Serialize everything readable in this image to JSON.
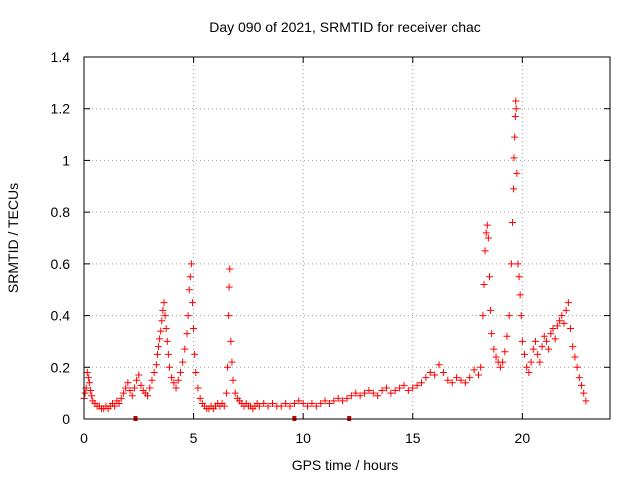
{
  "chart_data": {
    "type": "scatter",
    "title": "Day 090 of 2021, SRMTID for receiver chac",
    "xlabel": "GPS time / hours",
    "ylabel": "SRMTID / TECUs",
    "xlim": [
      0,
      24
    ],
    "ylim": [
      0,
      1.4
    ],
    "xticks": [
      0,
      5,
      10,
      15,
      20
    ],
    "yticks": [
      0,
      0.2,
      0.4,
      0.6,
      0.8,
      1.0,
      1.2,
      1.4
    ],
    "xtick_labels": [
      "0",
      "5",
      "10",
      "15",
      "20"
    ],
    "ytick_labels": [
      "0",
      "0.2",
      "0.4",
      "0.6",
      "0.8",
      "1",
      "1.2",
      "1.4"
    ],
    "grid": true,
    "marker": "+",
    "color": "#ff0000",
    "gap_markers_x": [
      2.35,
      9.6,
      12.1
    ],
    "series": [
      {
        "name": "SRMTID",
        "points": [
          [
            0.0,
            0.08
          ],
          [
            0.05,
            0.1
          ],
          [
            0.1,
            0.12
          ],
          [
            0.15,
            0.18
          ],
          [
            0.2,
            0.16
          ],
          [
            0.25,
            0.14
          ],
          [
            0.3,
            0.11
          ],
          [
            0.35,
            0.09
          ],
          [
            0.4,
            0.07
          ],
          [
            0.5,
            0.06
          ],
          [
            0.6,
            0.05
          ],
          [
            0.7,
            0.05
          ],
          [
            0.8,
            0.04
          ],
          [
            0.9,
            0.04
          ],
          [
            1.0,
            0.05
          ],
          [
            1.1,
            0.04
          ],
          [
            1.2,
            0.05
          ],
          [
            1.3,
            0.06
          ],
          [
            1.4,
            0.05
          ],
          [
            1.5,
            0.07
          ],
          [
            1.6,
            0.06
          ],
          [
            1.7,
            0.08
          ],
          [
            1.8,
            0.1
          ],
          [
            1.9,
            0.12
          ],
          [
            2.0,
            0.14
          ],
          [
            2.1,
            0.11
          ],
          [
            2.2,
            0.09
          ],
          [
            2.3,
            0.12
          ],
          [
            2.4,
            0.15
          ],
          [
            2.5,
            0.17
          ],
          [
            2.6,
            0.13
          ],
          [
            2.7,
            0.11
          ],
          [
            2.8,
            0.1
          ],
          [
            2.9,
            0.09
          ],
          [
            3.0,
            0.12
          ],
          [
            3.1,
            0.15
          ],
          [
            3.2,
            0.18
          ],
          [
            3.3,
            0.21
          ],
          [
            3.35,
            0.25
          ],
          [
            3.4,
            0.28
          ],
          [
            3.45,
            0.31
          ],
          [
            3.5,
            0.34
          ],
          [
            3.55,
            0.38
          ],
          [
            3.6,
            0.42
          ],
          [
            3.65,
            0.45
          ],
          [
            3.7,
            0.4
          ],
          [
            3.75,
            0.35
          ],
          [
            3.8,
            0.3
          ],
          [
            3.85,
            0.25
          ],
          [
            3.9,
            0.2
          ],
          [
            4.0,
            0.16
          ],
          [
            4.1,
            0.14
          ],
          [
            4.2,
            0.12
          ],
          [
            4.3,
            0.15
          ],
          [
            4.4,
            0.18
          ],
          [
            4.5,
            0.22
          ],
          [
            4.6,
            0.27
          ],
          [
            4.7,
            0.33
          ],
          [
            4.75,
            0.4
          ],
          [
            4.8,
            0.5
          ],
          [
            4.85,
            0.55
          ],
          [
            4.9,
            0.6
          ],
          [
            4.95,
            0.45
          ],
          [
            5.0,
            0.35
          ],
          [
            5.05,
            0.25
          ],
          [
            5.1,
            0.18
          ],
          [
            5.2,
            0.12
          ],
          [
            5.3,
            0.08
          ],
          [
            5.4,
            0.06
          ],
          [
            5.5,
            0.05
          ],
          [
            5.6,
            0.04
          ],
          [
            5.7,
            0.04
          ],
          [
            5.8,
            0.05
          ],
          [
            5.9,
            0.04
          ],
          [
            6.0,
            0.05
          ],
          [
            6.1,
            0.06
          ],
          [
            6.2,
            0.05
          ],
          [
            6.3,
            0.06
          ],
          [
            6.4,
            0.05
          ],
          [
            6.5,
            0.1
          ],
          [
            6.55,
            0.2
          ],
          [
            6.6,
            0.4
          ],
          [
            6.62,
            0.51
          ],
          [
            6.65,
            0.58
          ],
          [
            6.7,
            0.3
          ],
          [
            6.75,
            0.22
          ],
          [
            6.8,
            0.15
          ],
          [
            6.9,
            0.1
          ],
          [
            7.0,
            0.08
          ],
          [
            7.1,
            0.07
          ],
          [
            7.2,
            0.06
          ],
          [
            7.3,
            0.05
          ],
          [
            7.4,
            0.06
          ],
          [
            7.5,
            0.05
          ],
          [
            7.6,
            0.05
          ],
          [
            7.7,
            0.04
          ],
          [
            7.8,
            0.05
          ],
          [
            7.9,
            0.06
          ],
          [
            8.0,
            0.05
          ],
          [
            8.2,
            0.06
          ],
          [
            8.4,
            0.05
          ],
          [
            8.6,
            0.06
          ],
          [
            8.8,
            0.05
          ],
          [
            9.0,
            0.05
          ],
          [
            9.2,
            0.06
          ],
          [
            9.4,
            0.05
          ],
          [
            9.6,
            0.06
          ],
          [
            9.8,
            0.07
          ],
          [
            10.0,
            0.06
          ],
          [
            10.2,
            0.05
          ],
          [
            10.4,
            0.06
          ],
          [
            10.6,
            0.05
          ],
          [
            10.8,
            0.06
          ],
          [
            11.0,
            0.07
          ],
          [
            11.2,
            0.06
          ],
          [
            11.4,
            0.07
          ],
          [
            11.6,
            0.08
          ],
          [
            11.8,
            0.07
          ],
          [
            12.0,
            0.08
          ],
          [
            12.2,
            0.09
          ],
          [
            12.4,
            0.1
          ],
          [
            12.6,
            0.09
          ],
          [
            12.8,
            0.1
          ],
          [
            13.0,
            0.11
          ],
          [
            13.2,
            0.1
          ],
          [
            13.4,
            0.09
          ],
          [
            13.6,
            0.11
          ],
          [
            13.8,
            0.12
          ],
          [
            14.0,
            0.1
          ],
          [
            14.2,
            0.11
          ],
          [
            14.4,
            0.12
          ],
          [
            14.6,
            0.13
          ],
          [
            14.8,
            0.11
          ],
          [
            15.0,
            0.12
          ],
          [
            15.2,
            0.13
          ],
          [
            15.4,
            0.14
          ],
          [
            15.6,
            0.16
          ],
          [
            15.8,
            0.18
          ],
          [
            16.0,
            0.17
          ],
          [
            16.2,
            0.21
          ],
          [
            16.4,
            0.18
          ],
          [
            16.6,
            0.15
          ],
          [
            16.8,
            0.14
          ],
          [
            17.0,
            0.16
          ],
          [
            17.2,
            0.15
          ],
          [
            17.4,
            0.14
          ],
          [
            17.6,
            0.16
          ],
          [
            17.8,
            0.19
          ],
          [
            18.0,
            0.17
          ],
          [
            18.1,
            0.2
          ],
          [
            18.2,
            0.4
          ],
          [
            18.25,
            0.52
          ],
          [
            18.3,
            0.65
          ],
          [
            18.35,
            0.72
          ],
          [
            18.4,
            0.75
          ],
          [
            18.45,
            0.7
          ],
          [
            18.5,
            0.55
          ],
          [
            18.55,
            0.42
          ],
          [
            18.6,
            0.33
          ],
          [
            18.7,
            0.27
          ],
          [
            18.8,
            0.24
          ],
          [
            18.9,
            0.22
          ],
          [
            19.0,
            0.2
          ],
          [
            19.1,
            0.22
          ],
          [
            19.2,
            0.26
          ],
          [
            19.3,
            0.32
          ],
          [
            19.4,
            0.4
          ],
          [
            19.5,
            0.6
          ],
          [
            19.55,
            0.76
          ],
          [
            19.6,
            0.89
          ],
          [
            19.62,
            1.01
          ],
          [
            19.65,
            1.09
          ],
          [
            19.68,
            1.17
          ],
          [
            19.7,
            1.23
          ],
          [
            19.72,
            1.2
          ],
          [
            19.75,
            0.95
          ],
          [
            19.8,
            0.6
          ],
          [
            19.85,
            0.55
          ],
          [
            19.9,
            0.48
          ],
          [
            19.95,
            0.4
          ],
          [
            20.0,
            0.3
          ],
          [
            20.1,
            0.25
          ],
          [
            20.2,
            0.2
          ],
          [
            20.3,
            0.18
          ],
          [
            20.4,
            0.22
          ],
          [
            20.5,
            0.27
          ],
          [
            20.6,
            0.3
          ],
          [
            20.7,
            0.25
          ],
          [
            20.8,
            0.22
          ],
          [
            20.9,
            0.28
          ],
          [
            21.0,
            0.32
          ],
          [
            21.1,
            0.3
          ],
          [
            21.2,
            0.27
          ],
          [
            21.3,
            0.33
          ],
          [
            21.4,
            0.35
          ],
          [
            21.5,
            0.31
          ],
          [
            21.6,
            0.36
          ],
          [
            21.7,
            0.38
          ],
          [
            21.8,
            0.4
          ],
          [
            21.9,
            0.37
          ],
          [
            22.0,
            0.42
          ],
          [
            22.1,
            0.45
          ],
          [
            22.2,
            0.35
          ],
          [
            22.3,
            0.28
          ],
          [
            22.4,
            0.24
          ],
          [
            22.5,
            0.2
          ],
          [
            22.6,
            0.16
          ],
          [
            22.7,
            0.13
          ],
          [
            22.8,
            0.1
          ],
          [
            22.9,
            0.07
          ]
        ]
      }
    ]
  }
}
